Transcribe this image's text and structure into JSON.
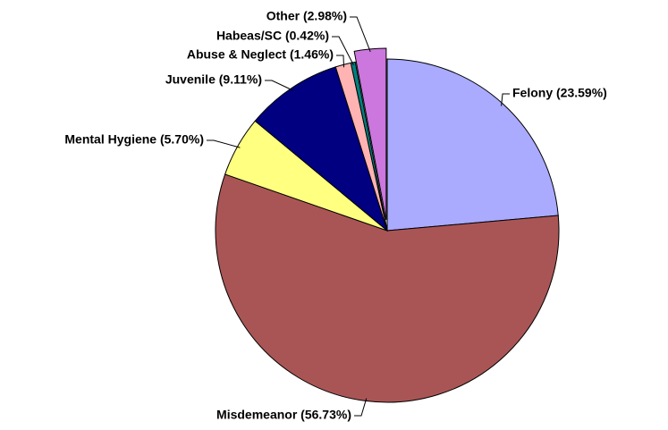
{
  "chart_data": {
    "type": "pie",
    "categories": [
      "Felony (23.59%)",
      "Misdemeanor (56.73%)",
      "Mental Hygiene (5.70%)",
      "Juvenile (9.11%)",
      "Abuse & Neglect (1.46%)",
      "Habeas/SC (0.42%)",
      "Other (2.98%)"
    ],
    "values": [
      23.59,
      56.73,
      5.7,
      9.11,
      1.46,
      0.42,
      2.98
    ],
    "colors": [
      "#aaaaff",
      "#aa5555",
      "#ffff80",
      "#000080",
      "#ffb3b3",
      "#008080",
      "#cc77dd"
    ]
  }
}
